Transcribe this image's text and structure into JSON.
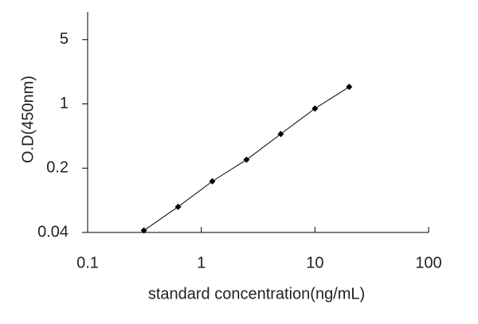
{
  "chart_data": {
    "type": "line",
    "x_label": "standard concentration(ng/mL)",
    "y_label": "O.D(450nm)",
    "x": [
      0.3125,
      0.625,
      1.25,
      2.5,
      5,
      10,
      20
    ],
    "values": [
      0.042,
      0.076,
      0.144,
      0.247,
      0.47,
      0.89,
      1.53
    ],
    "color": "#000000",
    "x_log": true,
    "y_log": true,
    "xlim": [
      0.1,
      100
    ],
    "xticks": [
      0.1,
      1,
      10,
      100
    ],
    "ylim": [
      0.04,
      10
    ],
    "yticks": [
      0.04,
      0.2,
      1,
      5
    ],
    "grid": false
  }
}
